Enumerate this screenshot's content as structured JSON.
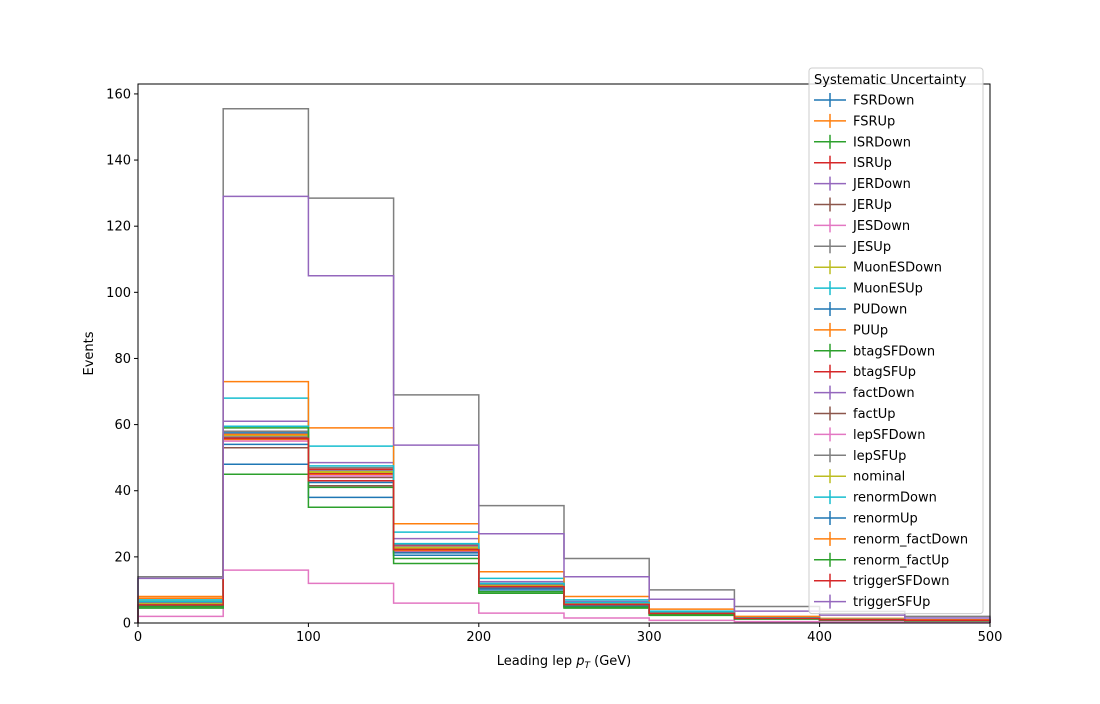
{
  "chart_data": {
    "type": "step-histogram",
    "xlabel_main": "Leading lep ",
    "xlabel_sym": "p",
    "xlabel_sub": "T",
    "xlabel_unit": " (GeV)",
    "ylabel": "Events",
    "xlim": [
      0,
      500
    ],
    "ylim": [
      0,
      163
    ],
    "x_ticks": [
      0,
      100,
      200,
      300,
      400,
      500
    ],
    "y_ticks": [
      0,
      20,
      40,
      60,
      80,
      100,
      120,
      140,
      160
    ],
    "bin_edges": [
      0,
      50,
      100,
      150,
      200,
      250,
      300,
      350,
      400,
      450,
      500
    ],
    "legend": {
      "title": "Systematic Uncertainty",
      "placement": "upper right"
    },
    "series": [
      {
        "name": "FSRDown",
        "color": "#1f77b4",
        "values": [
          5.5,
          57.5,
          46.0,
          23.0,
          11.5,
          6.0,
          3.0,
          1.5,
          1.0,
          0.8
        ]
      },
      {
        "name": "FSRUp",
        "color": "#ff7f0e",
        "values": [
          6.5,
          55.5,
          45.0,
          22.5,
          11.0,
          5.5,
          3.0,
          1.5,
          1.0,
          0.8
        ]
      },
      {
        "name": "ISRDown",
        "color": "#2ca02c",
        "values": [
          5.8,
          56.5,
          45.5,
          22.8,
          11.2,
          5.8,
          3.0,
          1.5,
          1.0,
          0.8
        ]
      },
      {
        "name": "ISRUp",
        "color": "#d62728",
        "values": [
          5.6,
          56.0,
          45.2,
          22.6,
          11.0,
          5.6,
          2.9,
          1.4,
          1.0,
          0.8
        ]
      },
      {
        "name": "JERDown",
        "color": "#9467bd",
        "values": [
          6.2,
          61.0,
          48.5,
          25.5,
          12.5,
          6.5,
          3.3,
          1.6,
          1.1,
          0.9
        ]
      },
      {
        "name": "JERUp",
        "color": "#8c564b",
        "values": [
          5.0,
          53.0,
          41.5,
          21.5,
          10.5,
          5.2,
          2.7,
          1.3,
          0.9,
          0.7
        ]
      },
      {
        "name": "JESDown",
        "color": "#e377c2",
        "values": [
          2.0,
          16.0,
          12.0,
          6.0,
          3.0,
          1.5,
          0.8,
          0.4,
          0.3,
          0.2
        ]
      },
      {
        "name": "JESUp",
        "color": "#7f7f7f",
        "values": [
          14.0,
          155.5,
          128.5,
          69.0,
          35.5,
          19.5,
          10.0,
          5.0,
          3.5,
          2.0
        ]
      },
      {
        "name": "MuonESDown",
        "color": "#bcbd22",
        "values": [
          5.7,
          56.8,
          45.6,
          22.7,
          11.3,
          5.7,
          3.0,
          1.5,
          1.0,
          0.8
        ]
      },
      {
        "name": "MuonESUp",
        "color": "#17becf",
        "values": [
          7.0,
          68.0,
          53.5,
          27.5,
          13.5,
          7.0,
          3.6,
          1.8,
          1.2,
          0.9
        ]
      },
      {
        "name": "PUDown",
        "color": "#1f77b4",
        "values": [
          5.0,
          48.0,
          38.0,
          20.5,
          10.0,
          5.0,
          2.6,
          1.3,
          0.9,
          0.7
        ]
      },
      {
        "name": "PUUp",
        "color": "#ff7f0e",
        "values": [
          8.0,
          73.0,
          59.0,
          30.0,
          15.5,
          8.0,
          4.2,
          2.0,
          1.4,
          1.0
        ]
      },
      {
        "name": "btagSFDown",
        "color": "#2ca02c",
        "values": [
          4.5,
          45.0,
          35.0,
          18.0,
          9.0,
          4.5,
          2.3,
          1.2,
          0.8,
          0.6
        ]
      },
      {
        "name": "btagSFUp",
        "color": "#d62728",
        "values": [
          5.9,
          57.0,
          46.5,
          23.5,
          11.6,
          5.9,
          3.1,
          1.5,
          1.0,
          0.8
        ]
      },
      {
        "name": "factDown",
        "color": "#9467bd",
        "values": [
          5.9,
          56.5,
          46.0,
          23.2,
          11.4,
          5.8,
          3.0,
          1.5,
          1.0,
          0.8
        ]
      },
      {
        "name": "factUp",
        "color": "#8c564b",
        "values": [
          5.4,
          56.0,
          44.0,
          22.0,
          10.8,
          5.5,
          2.8,
          1.4,
          1.0,
          0.8
        ]
      },
      {
        "name": "lepSFDown",
        "color": "#e377c2",
        "values": [
          5.3,
          55.0,
          44.5,
          21.8,
          10.8,
          5.4,
          2.8,
          1.4,
          1.0,
          0.8
        ]
      },
      {
        "name": "lepSFUp",
        "color": "#7f7f7f",
        "values": [
          6.0,
          58.0,
          47.0,
          23.8,
          11.8,
          6.0,
          3.1,
          1.5,
          1.0,
          0.8
        ]
      },
      {
        "name": "nominal",
        "color": "#bcbd22",
        "values": [
          5.8,
          56.7,
          45.8,
          22.9,
          11.3,
          5.7,
          3.0,
          1.5,
          1.0,
          0.8
        ]
      },
      {
        "name": "renormDown",
        "color": "#17becf",
        "values": [
          6.5,
          59.5,
          47.5,
          24.0,
          12.0,
          6.2,
          3.2,
          1.6,
          1.1,
          0.8
        ]
      },
      {
        "name": "renormUp",
        "color": "#1f77b4",
        "values": [
          5.2,
          54.0,
          42.5,
          21.2,
          10.6,
          5.3,
          2.7,
          1.4,
          0.9,
          0.7
        ]
      },
      {
        "name": "renorm_factDown",
        "color": "#ff7f0e",
        "values": [
          7.5,
          57.0,
          43.0,
          22.0,
          11.0,
          5.6,
          2.9,
          1.4,
          1.0,
          0.8
        ]
      },
      {
        "name": "renorm_factUp",
        "color": "#2ca02c",
        "values": [
          5.0,
          59.0,
          41.0,
          19.5,
          9.5,
          4.8,
          2.5,
          1.2,
          0.9,
          0.7
        ]
      },
      {
        "name": "triggerSFDown",
        "color": "#d62728",
        "values": [
          5.5,
          55.8,
          43.0,
          22.2,
          11.0,
          5.6,
          2.9,
          1.4,
          1.0,
          0.8
        ]
      },
      {
        "name": "triggerSFUp",
        "color": "#9467bd",
        "values": [
          13.5,
          129.0,
          105.0,
          53.8,
          27.0,
          14.0,
          7.2,
          3.6,
          2.4,
          1.5
        ]
      }
    ]
  }
}
